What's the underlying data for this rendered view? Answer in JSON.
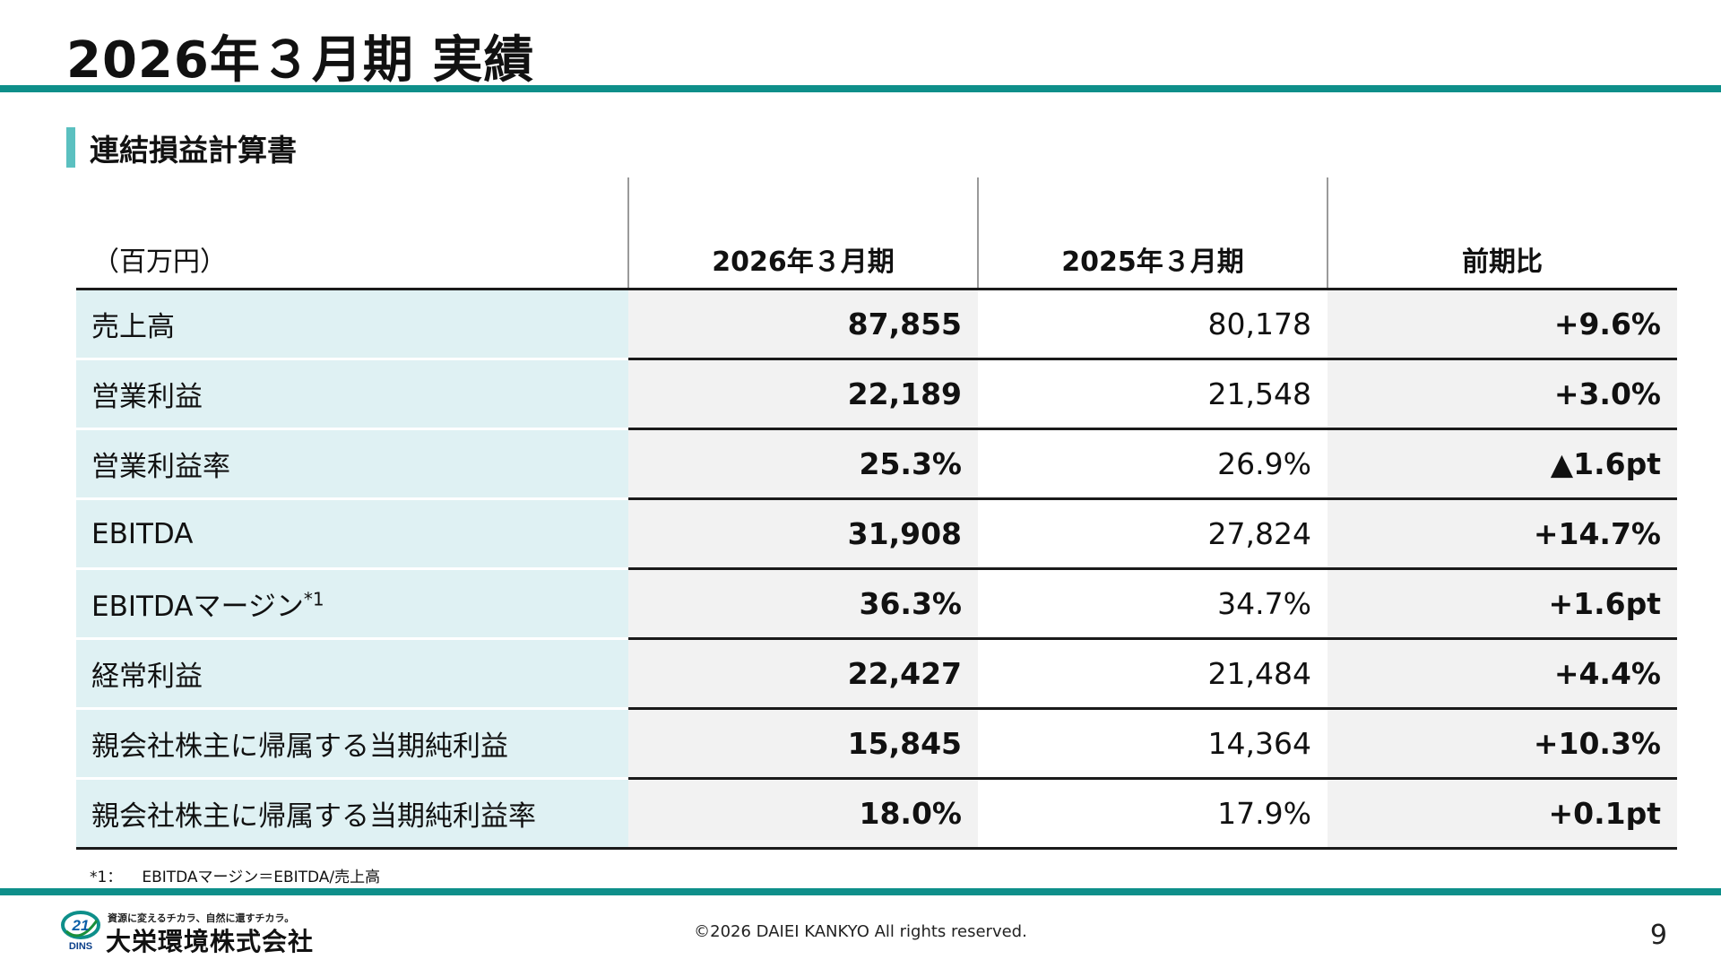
{
  "title": "2026年３月期 実績",
  "section": {
    "title": "連結損益計算書"
  },
  "table": {
    "unit_label": "（百万円）",
    "columns": [
      "2026年３月期",
      "2025年３月期",
      "前期比"
    ],
    "rows": [
      {
        "label": "売上高",
        "current": "87,855",
        "previous": "80,178",
        "change": "+9.6%"
      },
      {
        "label": "営業利益",
        "current": "22,189",
        "previous": "21,548",
        "change": "+3.0%"
      },
      {
        "label": "営業利益率",
        "current": "25.3%",
        "previous": "26.9%",
        "change": "▲1.6pt"
      },
      {
        "label": "EBITDA",
        "current": "31,908",
        "previous": "27,824",
        "change": "+14.7%"
      },
      {
        "label": "EBITDAマージン",
        "label_sup": "*1",
        "current": "36.3%",
        "previous": "34.7%",
        "change": "+1.6pt"
      },
      {
        "label": "経常利益",
        "current": "22,427",
        "previous": "21,484",
        "change": "+4.4%"
      },
      {
        "label": "親会社株主に帰属する当期純利益",
        "current": "15,845",
        "previous": "14,364",
        "change": "+10.3%"
      },
      {
        "label": "親会社株主に帰属する当期純利益率",
        "current": "18.0%",
        "previous": "17.9%",
        "change": "+0.1pt"
      }
    ]
  },
  "footnote": {
    "mark": "*1：",
    "text": "EBITDAマージン＝EBITDA/売上高"
  },
  "footer": {
    "logo_emblem_text": "21",
    "logo_emblem_sub": "DINS",
    "logo_tagline": "資源に変えるチカラ、自然に還すチカラ。",
    "logo_name": "大栄環境株式会社",
    "copyright": "©2026 DAIEI KANKYO All rights reserved.",
    "page_number": "9"
  },
  "colors": {
    "accent": "#0e8f8a",
    "section_bar": "#5bc0c0",
    "label_bg": "#dff1f3",
    "value_bg": "#f2f2f2"
  }
}
